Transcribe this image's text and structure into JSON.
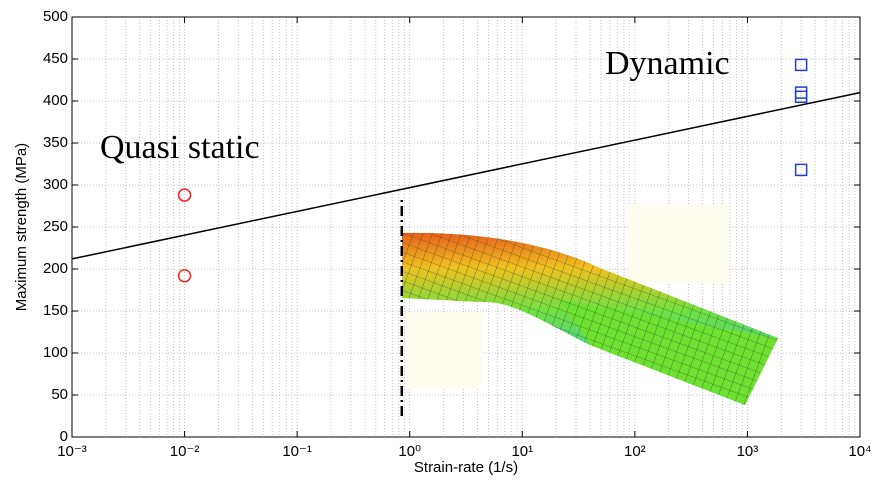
{
  "chart_data": {
    "type": "scatter",
    "x_label": "Strain-rate (1/s)",
    "y_label": "Maximum strength (MPa)",
    "annotations": [
      {
        "text": "Quasi static",
        "color": "#ff2020"
      },
      {
        "text": "Dynamic",
        "color": "#1f4fd0"
      }
    ],
    "x_log": true,
    "grid": true,
    "xlim": [
      0.001,
      10000
    ],
    "xticks": [
      {
        "value": 0.001,
        "label": "10⁻³"
      },
      {
        "value": 0.01,
        "label": "10⁻²"
      },
      {
        "value": 0.1,
        "label": "10⁻¹"
      },
      {
        "value": 1,
        "label": "10⁰"
      },
      {
        "value": 10,
        "label": "10¹"
      },
      {
        "value": 100,
        "label": "10²"
      },
      {
        "value": 1000,
        "label": "10³"
      },
      {
        "value": 10000,
        "label": "10⁴"
      }
    ],
    "ylim": [
      0,
      500
    ],
    "yticks": [
      0,
      50,
      100,
      150,
      200,
      250,
      300,
      350,
      400,
      450,
      500
    ],
    "series": [
      {
        "style": "line",
        "color": "#000000",
        "x": [
          0.001,
          10000
        ],
        "values": [
          212,
          410
        ]
      },
      {
        "style": "circle",
        "color": "#ff2020",
        "x": [
          0.01,
          0.01
        ],
        "values": [
          288,
          192
        ]
      },
      {
        "style": "square",
        "color": "#1f3fd0",
        "x": [
          3000,
          3000,
          3000,
          3000
        ],
        "values": [
          443,
          410,
          405,
          318
        ]
      }
    ],
    "reference_line": {
      "x": 0.85,
      "y": [
        25,
        285
      ]
    }
  }
}
